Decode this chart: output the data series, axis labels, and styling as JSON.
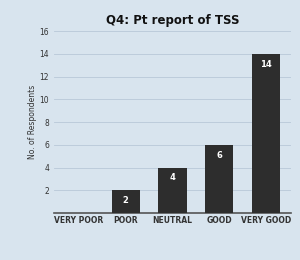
{
  "title": "Q4: Pt report of TSS",
  "categories": [
    "VERY POOR",
    "POOR",
    "NEUTRAL",
    "GOOD",
    "VERY GOOD"
  ],
  "values": [
    0,
    2,
    4,
    6,
    14
  ],
  "bar_color": "#2d2d2d",
  "ylabel": "No. of Respondents",
  "ylim": [
    0,
    16
  ],
  "yticks": [
    2,
    4,
    6,
    8,
    10,
    12,
    14,
    16
  ],
  "background_color": "#d8e4ee",
  "label_color": "#ffffff",
  "title_fontsize": 8.5,
  "axis_fontsize": 5.5,
  "tick_fontsize": 5.5,
  "bar_label_fontsize": 6,
  "grid_color": "#b8c8d8"
}
